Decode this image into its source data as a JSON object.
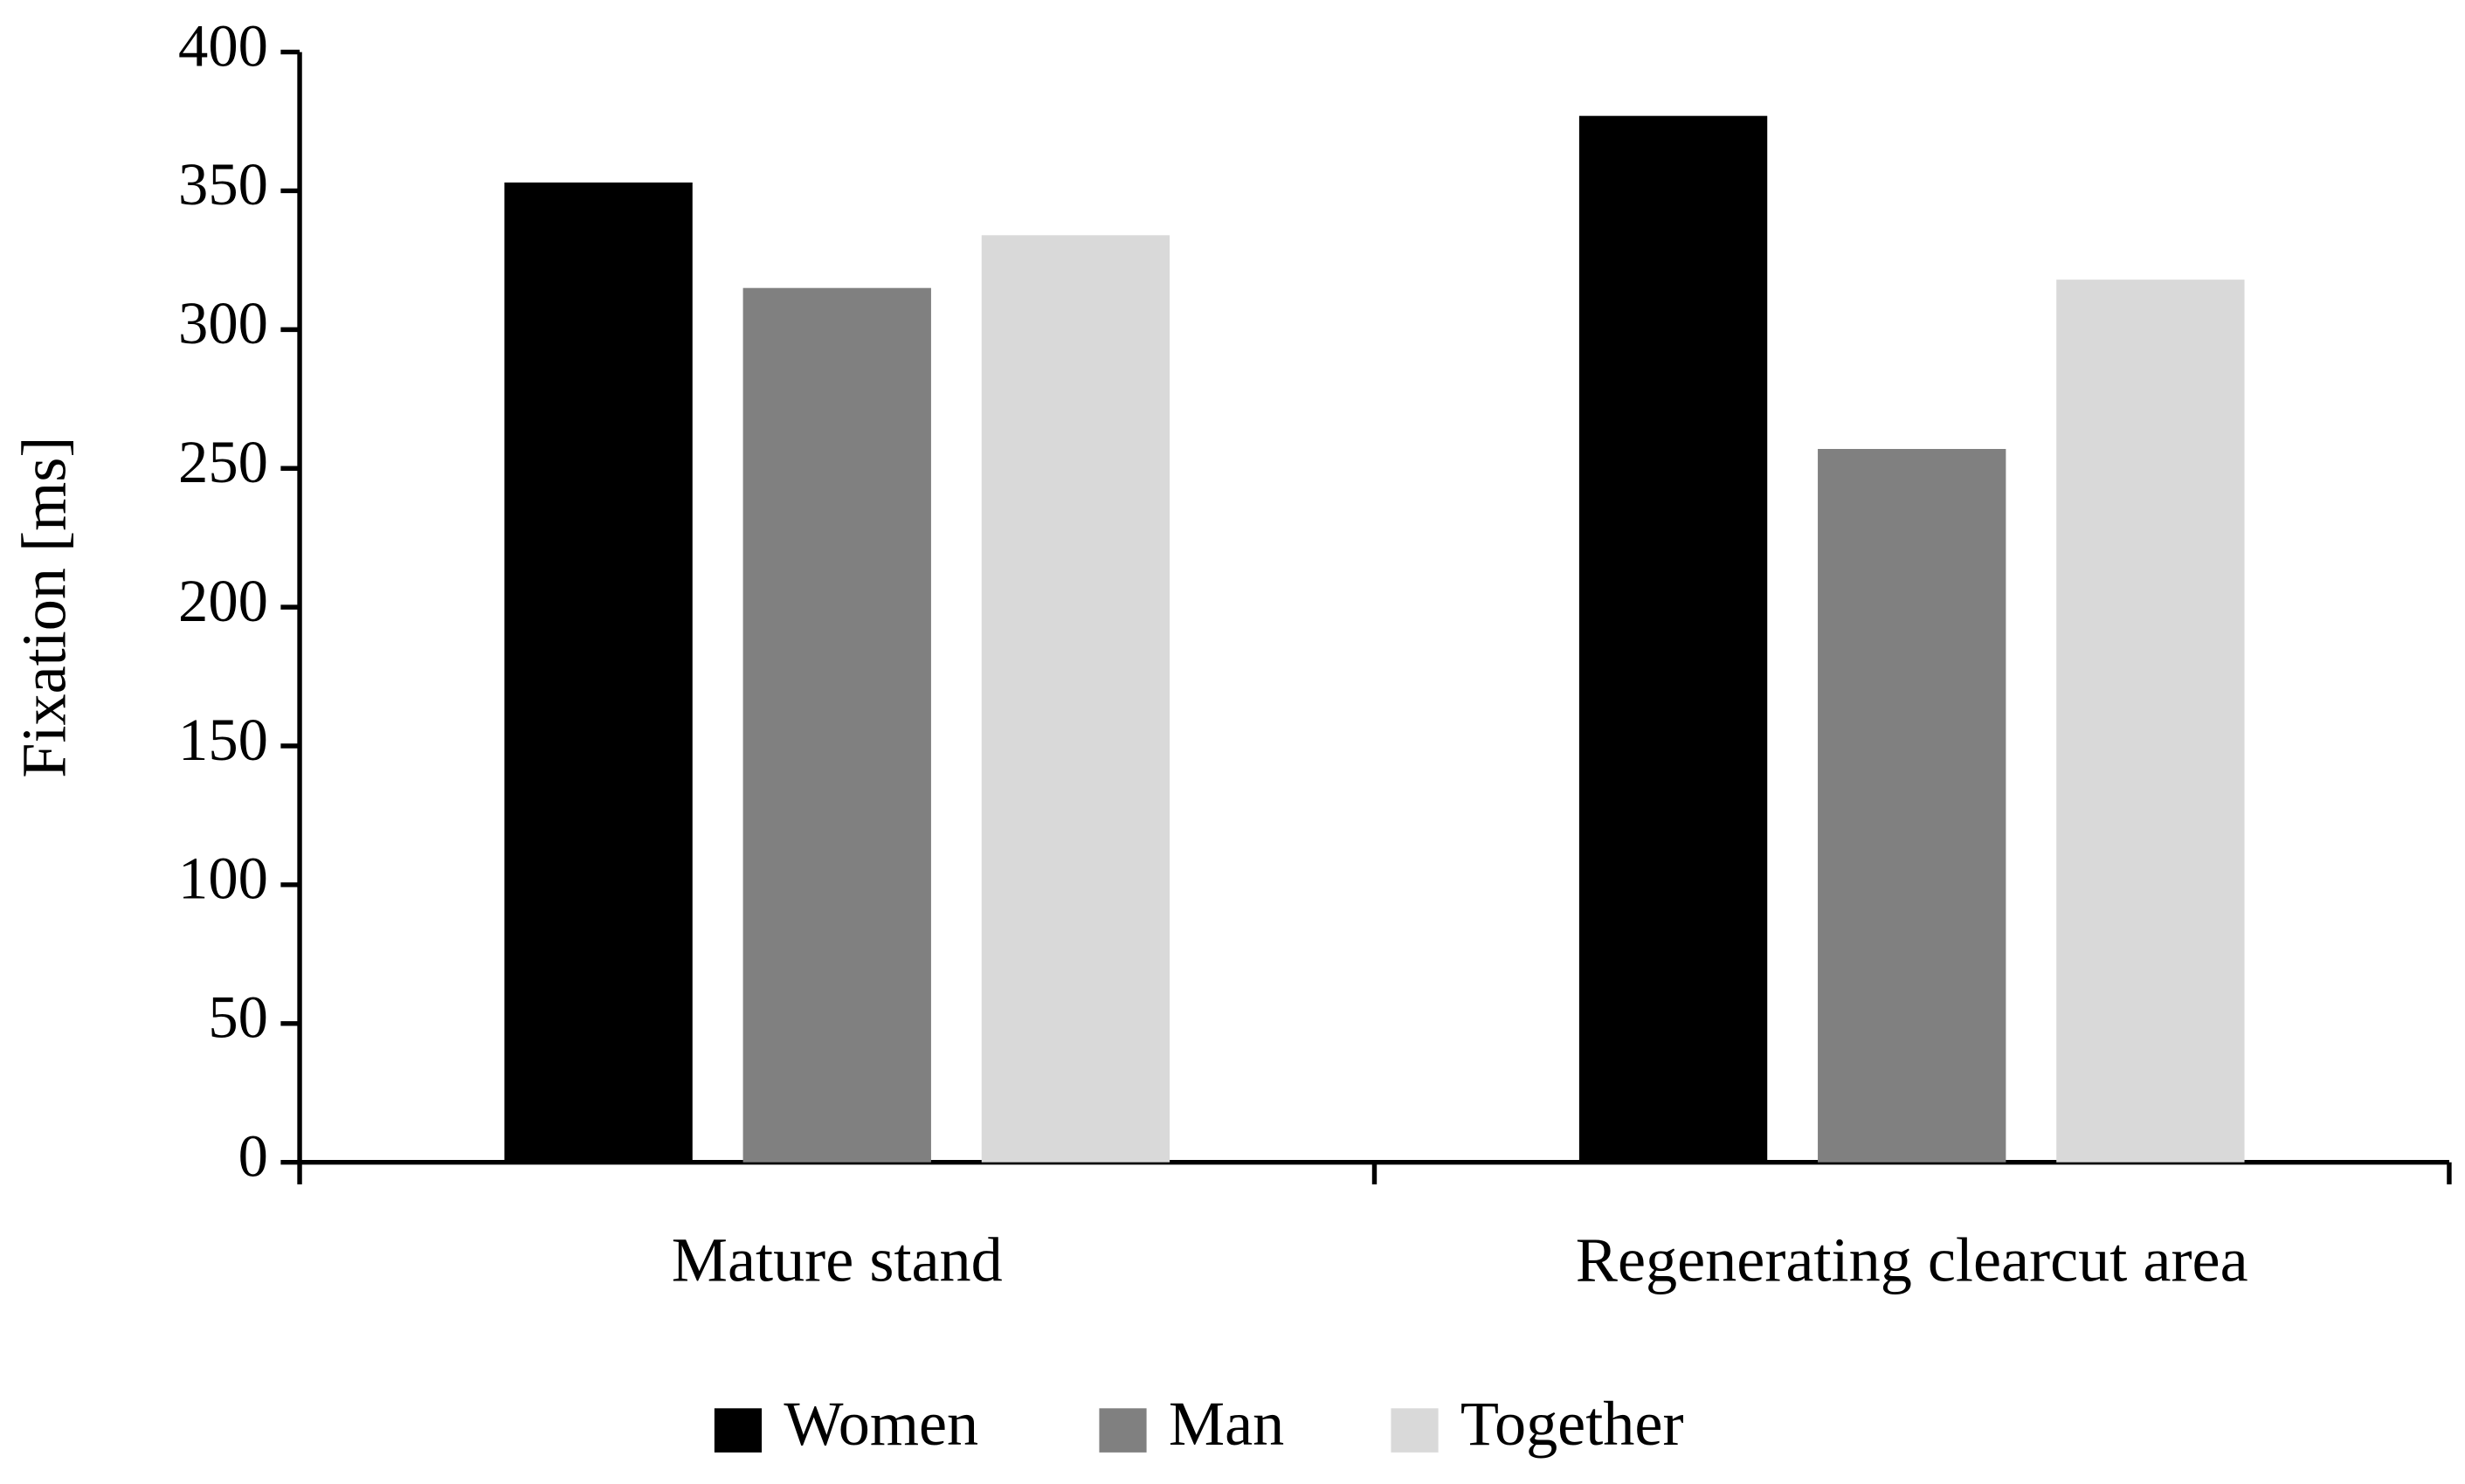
{
  "chart_data": {
    "type": "bar",
    "categories": [
      "Mature stand",
      "Regenerating clearcut area"
    ],
    "series": [
      {
        "name": "Women",
        "color": "#000000",
        "values": [
          353,
          377
        ]
      },
      {
        "name": "Man",
        "color": "#808080",
        "values": [
          315,
          257
        ]
      },
      {
        "name": "Together",
        "color": "#d9d9d9",
        "values": [
          334,
          318
        ]
      }
    ],
    "y_label": "Fixation [ms]",
    "ylim": [
      0,
      400
    ],
    "yticks": [
      0,
      50,
      100,
      150,
      200,
      250,
      300,
      350,
      400
    ],
    "grid": false,
    "legend": "bottom"
  }
}
